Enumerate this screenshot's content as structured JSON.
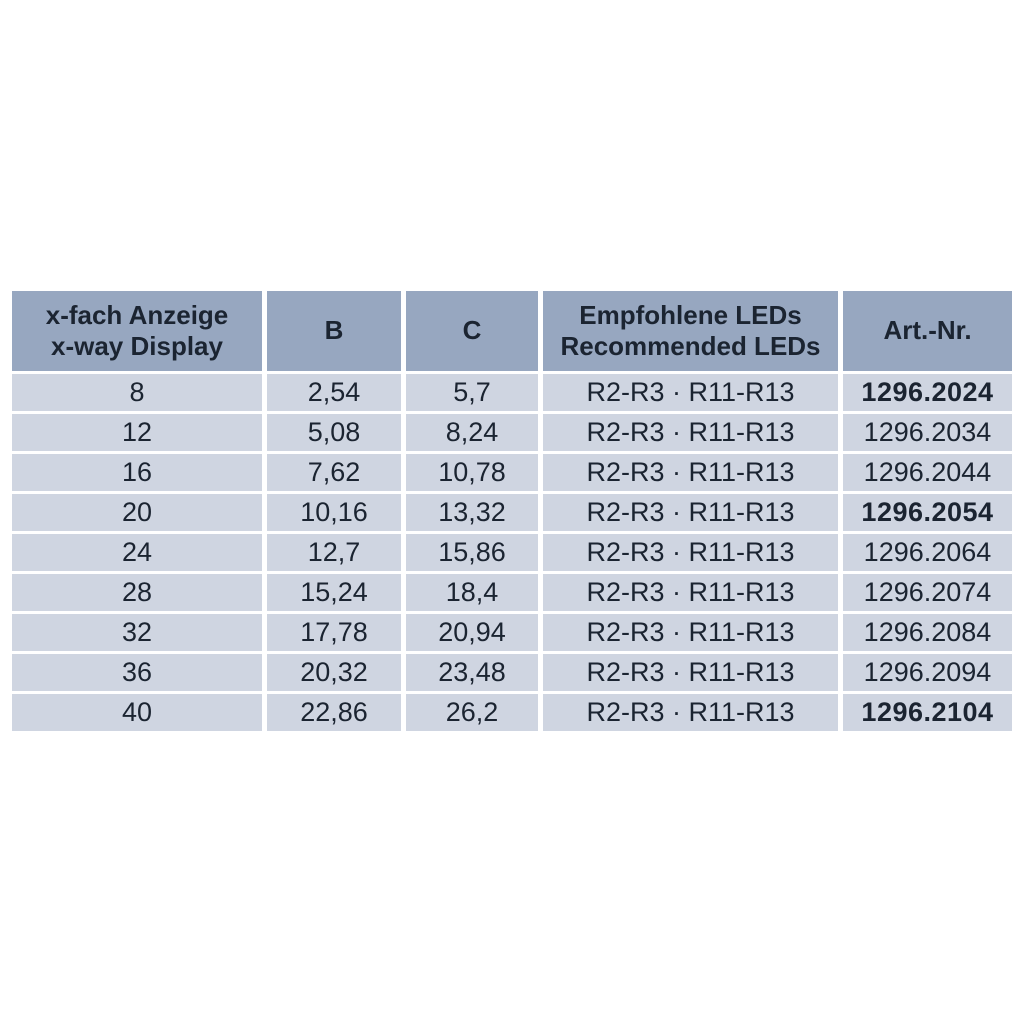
{
  "table": {
    "header": {
      "display_col_line1": "x-fach Anzeige",
      "display_col_line2": "x-way Display",
      "b_col": "B",
      "c_col": "C",
      "leds_col_line1": "Empfohlene LEDs",
      "leds_col_line2": "Recommended LEDs",
      "art_col": "Art.-Nr."
    },
    "rows": [
      {
        "display": "8",
        "b": "2,54",
        "c": "5,7",
        "leds": "R2-R3 · R11-R13",
        "art_nr": "1296.2024",
        "art_bold": true
      },
      {
        "display": "12",
        "b": "5,08",
        "c": "8,24",
        "leds": "R2-R3 · R11-R13",
        "art_nr": "1296.2034",
        "art_bold": false
      },
      {
        "display": "16",
        "b": "7,62",
        "c": "10,78",
        "leds": "R2-R3 · R11-R13",
        "art_nr": "1296.2044",
        "art_bold": false
      },
      {
        "display": "20",
        "b": "10,16",
        "c": "13,32",
        "leds": "R2-R3 · R11-R13",
        "art_nr": "1296.2054",
        "art_bold": true
      },
      {
        "display": "24",
        "b": "12,7",
        "c": "15,86",
        "leds": "R2-R3 · R11-R13",
        "art_nr": "1296.2064",
        "art_bold": false
      },
      {
        "display": "28",
        "b": "15,24",
        "c": "18,4",
        "leds": "R2-R3 · R11-R13",
        "art_nr": "1296.2074",
        "art_bold": false
      },
      {
        "display": "32",
        "b": "17,78",
        "c": "20,94",
        "leds": "R2-R3 · R11-R13",
        "art_nr": "1296.2084",
        "art_bold": false
      },
      {
        "display": "36",
        "b": "20,32",
        "c": "23,48",
        "leds": "R2-R3 · R11-R13",
        "art_nr": "1296.2094",
        "art_bold": false
      },
      {
        "display": "40",
        "b": "22,86",
        "c": "26,2",
        "leds": "R2-R3 · R11-R13",
        "art_nr": "1296.2104",
        "art_bold": true
      }
    ]
  },
  "colors": {
    "header_bg": "#97a7c0",
    "row_bg": "#cfd5e1",
    "text": "#1b2431",
    "page_bg": "#ffffff"
  }
}
